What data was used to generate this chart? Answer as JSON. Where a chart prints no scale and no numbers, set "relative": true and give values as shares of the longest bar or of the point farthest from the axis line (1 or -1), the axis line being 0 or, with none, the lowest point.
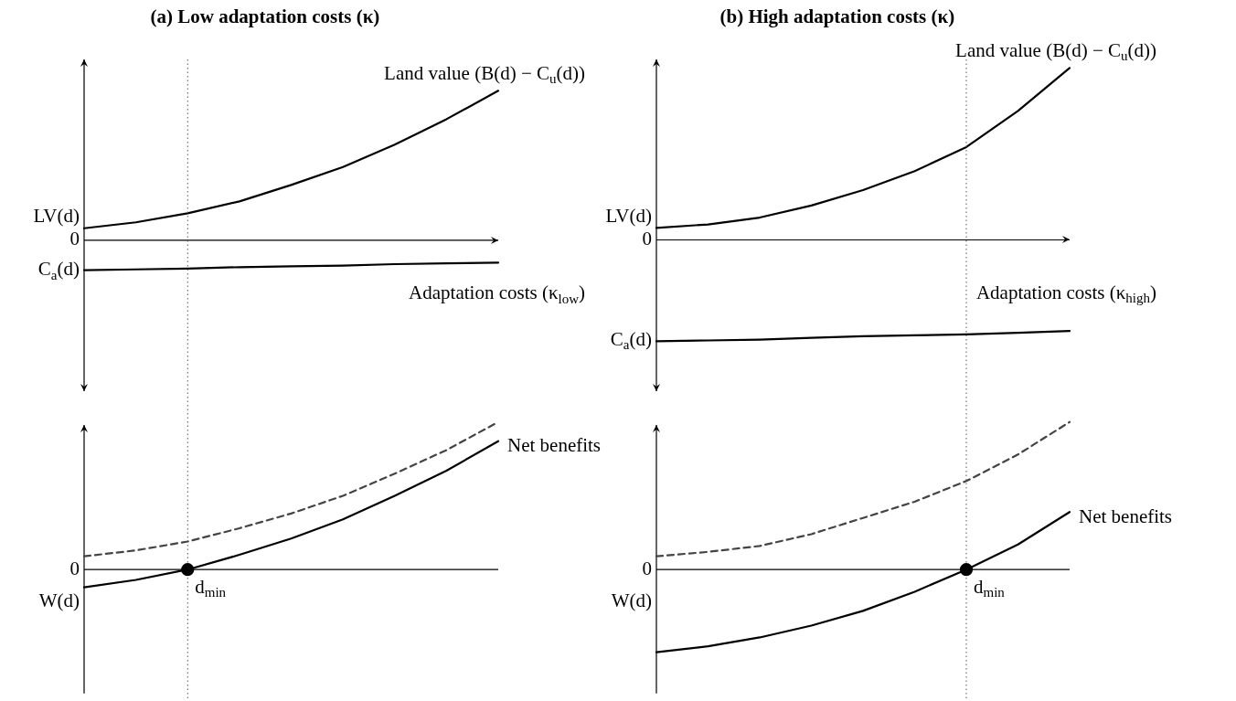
{
  "chart_data": [
    {
      "type": "line",
      "title": "(a) Low adaptation costs (κ)",
      "relative": true,
      "categories": [
        null,
        null,
        null,
        null,
        null,
        null,
        null,
        null,
        null
      ],
      "series": [
        {
          "name": "Land value (B(d) − C$_{u}$(d))",
          "color": "#000000",
          "values": [
            0.08,
            0.12,
            0.18,
            0.26,
            0.37,
            0.49,
            0.64,
            0.81,
            1
          ]
        },
        {
          "name": "Adaptation costs (κ$_{low}$)",
          "color": "#000000",
          "values": [
            -0.2,
            -0.195,
            -0.19,
            -0.18,
            -0.175,
            -0.17,
            -0.16,
            -0.155,
            -0.15
          ]
        }
      ],
      "annotations": [
        "LV(d)",
        "0",
        "C$_{a}$(d)"
      ]
    },
    {
      "type": "line",
      "title": "(b) High adaptation costs (κ)",
      "relative": true,
      "categories": [
        null,
        null,
        null,
        null,
        null,
        null,
        null,
        null,
        null
      ],
      "series": [
        {
          "name": "Land value (B(d) − C$_{u}$(d))",
          "color": "#000000",
          "values": [
            0.07,
            0.09,
            0.13,
            0.2,
            0.29,
            0.4,
            0.54,
            0.75,
            1
          ]
        },
        {
          "name": "Adaptation costs (κ$_{high}$)",
          "color": "#000000",
          "values": [
            -0.59,
            -0.585,
            -0.58,
            -0.57,
            -0.56,
            -0.555,
            -0.55,
            -0.54,
            -0.53
          ]
        }
      ],
      "annotations": [
        "LV(d)",
        "0",
        "C$_{a}$(d)"
      ]
    },
    {
      "type": "line",
      "relative": true,
      "categories": [
        null,
        null,
        null,
        null,
        null,
        null,
        null,
        null,
        null
      ],
      "series": [
        {
          "color": "#444444",
          "line_style": "dashed",
          "values": [
            0.09,
            0.13,
            0.19,
            0.28,
            0.38,
            0.5,
            0.65,
            0.81,
            1
          ]
        },
        {
          "name": "Net benefits",
          "color": "#000000",
          "values": [
            -0.12,
            -0.07,
            0,
            0.1,
            0.21,
            0.34,
            0.5,
            0.67,
            0.87
          ]
        },
        {
          "type": "scatter",
          "color": "#000000",
          "marker": "circle",
          "values": [
            null,
            null,
            0,
            null,
            null,
            null,
            null,
            null,
            null
          ]
        }
      ],
      "ref_lines": [
        {
          "axis": "x",
          "line_style": "dotted",
          "color": "#555555"
        }
      ],
      "annotations": [
        "0",
        "W(d)",
        "d$_{min}$"
      ]
    },
    {
      "type": "line",
      "relative": true,
      "categories": [
        null,
        null,
        null,
        null,
        null,
        null,
        null,
        null,
        null
      ],
      "series": [
        {
          "color": "#444444",
          "line_style": "dashed",
          "values": [
            0.09,
            0.12,
            0.16,
            0.24,
            0.35,
            0.46,
            0.6,
            0.78,
            1
          ]
        },
        {
          "name": "Net benefits",
          "color": "#000000",
          "values": [
            -0.56,
            -0.52,
            -0.46,
            -0.38,
            -0.28,
            -0.15,
            0,
            0.17,
            0.39
          ]
        },
        {
          "type": "scatter",
          "color": "#000000",
          "marker": "circle",
          "values": [
            null,
            null,
            null,
            null,
            null,
            null,
            0,
            null,
            null
          ]
        }
      ],
      "ref_lines": [
        {
          "axis": "x",
          "line_style": "dotted",
          "color": "#555555"
        }
      ],
      "annotations": [
        "0",
        "W(d)",
        "d$_{min}$"
      ]
    }
  ]
}
